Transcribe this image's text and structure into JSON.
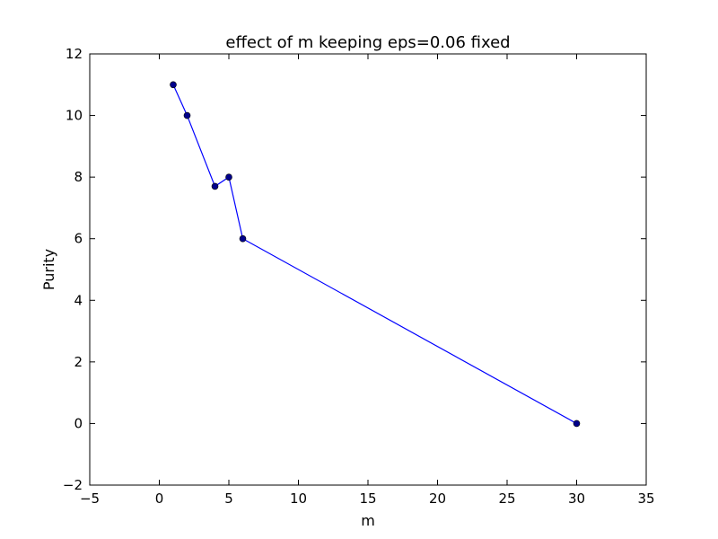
{
  "chart_data": {
    "type": "line",
    "title": "effect of m keeping eps=0.06 fixed",
    "xlabel": "m",
    "ylabel": "Purity",
    "xlim": [
      -5,
      35
    ],
    "ylim": [
      -2,
      12
    ],
    "xticks": [
      -5,
      0,
      5,
      10,
      15,
      20,
      25,
      30,
      35
    ],
    "yticks": [
      -2,
      0,
      2,
      4,
      6,
      8,
      10,
      12
    ],
    "xtick_labels": [
      "−5",
      "0",
      "5",
      "10",
      "15",
      "20",
      "25",
      "30",
      "35"
    ],
    "ytick_labels": [
      "−2",
      "0",
      "2",
      "4",
      "6",
      "8",
      "10",
      "12"
    ],
    "grid": false,
    "series": [
      {
        "x": [
          1,
          2,
          4,
          5,
          6,
          30
        ],
        "y": [
          11,
          10,
          7.7,
          8,
          6,
          0
        ],
        "color": "#0000ff",
        "marker": "circle",
        "marker_color": "#00008b"
      }
    ]
  }
}
